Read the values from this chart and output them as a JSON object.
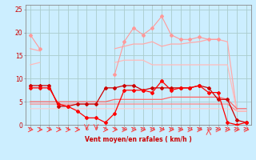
{
  "xlabel": "Vent moyen/en rafales ( km/h )",
  "ylabel": "",
  "x": [
    0,
    1,
    2,
    3,
    4,
    5,
    6,
    7,
    8,
    9,
    10,
    11,
    12,
    13,
    14,
    15,
    16,
    17,
    18,
    19,
    20,
    21,
    22,
    23
  ],
  "ylim": [
    0,
    26
  ],
  "xlim": [
    -0.5,
    23.5
  ],
  "yticks": [
    0,
    5,
    10,
    15,
    20,
    25
  ],
  "background_color": "#cceeff",
  "grid_color": "#aacccc",
  "lines": [
    {
      "y": [
        19.5,
        16.5,
        null,
        null,
        null,
        null,
        null,
        null,
        null,
        11.0,
        18.0,
        21.0,
        19.5,
        21.0,
        23.5,
        19.5,
        18.5,
        18.5,
        19.0,
        18.5,
        18.5,
        null,
        null,
        null
      ],
      "color": "#ff9999",
      "lw": 0.8,
      "marker": "D",
      "ms": 2.0,
      "zorder": 3
    },
    {
      "y": [
        16.5,
        16.0,
        null,
        null,
        null,
        null,
        null,
        null,
        null,
        16.5,
        17.0,
        17.5,
        17.5,
        18.0,
        17.0,
        17.5,
        17.5,
        17.8,
        18.0,
        18.5,
        18.5,
        18.0,
        3.0,
        3.0
      ],
      "color": "#ffaaaa",
      "lw": 0.9,
      "marker": null,
      "ms": 0,
      "zorder": 2
    },
    {
      "y": [
        13.0,
        13.5,
        null,
        null,
        null,
        null,
        null,
        null,
        null,
        13.5,
        14.0,
        14.0,
        14.0,
        13.0,
        13.0,
        13.0,
        13.0,
        13.0,
        13.0,
        13.0,
        13.0,
        13.0,
        3.0,
        3.0
      ],
      "color": "#ffbbbb",
      "lw": 0.9,
      "marker": null,
      "ms": 0,
      "zorder": 2
    },
    {
      "y": [
        8.5,
        8.5,
        8.5,
        4.0,
        4.0,
        4.5,
        4.5,
        4.5,
        8.0,
        8.0,
        8.5,
        8.5,
        7.5,
        8.0,
        8.0,
        8.0,
        8.0,
        8.0,
        8.5,
        8.0,
        5.5,
        5.5,
        1.0,
        0.5
      ],
      "color": "#cc0000",
      "lw": 0.9,
      "marker": "D",
      "ms": 2.0,
      "zorder": 4
    },
    {
      "y": [
        8.0,
        8.0,
        8.0,
        4.5,
        4.0,
        3.0,
        1.5,
        1.5,
        0.5,
        2.5,
        7.5,
        7.5,
        7.5,
        7.0,
        9.5,
        7.5,
        8.0,
        8.0,
        8.5,
        7.0,
        7.0,
        0.5,
        0.0,
        0.5
      ],
      "color": "#ff0000",
      "lw": 0.9,
      "marker": "D",
      "ms": 2.0,
      "zorder": 5
    },
    {
      "y": [
        5.0,
        5.0,
        5.0,
        5.0,
        5.0,
        5.0,
        5.0,
        5.0,
        5.0,
        5.5,
        5.5,
        5.5,
        5.5,
        5.5,
        5.5,
        6.0,
        6.0,
        6.0,
        6.0,
        6.0,
        6.0,
        5.5,
        3.5,
        3.5
      ],
      "color": "#ff6666",
      "lw": 0.9,
      "marker": null,
      "ms": 0,
      "zorder": 2
    },
    {
      "y": [
        4.5,
        4.5,
        4.5,
        4.5,
        4.5,
        4.5,
        4.5,
        4.5,
        4.5,
        4.5,
        4.5,
        4.5,
        4.5,
        4.5,
        4.5,
        4.5,
        4.5,
        4.5,
        4.5,
        4.5,
        4.5,
        4.5,
        3.0,
        3.0
      ],
      "color": "#ff8888",
      "lw": 0.9,
      "marker": null,
      "ms": 0,
      "zorder": 2
    },
    {
      "y": [
        3.5,
        3.5,
        3.5,
        3.5,
        3.5,
        3.5,
        3.5,
        3.5,
        3.5,
        3.5,
        3.5,
        3.5,
        3.5,
        3.5,
        3.5,
        3.5,
        3.5,
        3.5,
        3.5,
        3.5,
        3.5,
        3.5,
        3.0,
        3.0
      ],
      "color": "#ffcccc",
      "lw": 0.8,
      "marker": null,
      "ms": 0,
      "zorder": 2
    }
  ],
  "arrow_directions": [
    0,
    0,
    0,
    0,
    0,
    0,
    1,
    1,
    0,
    0,
    0,
    0,
    0,
    0,
    0,
    0,
    0,
    0,
    0,
    2,
    0,
    0,
    0,
    0
  ],
  "arrow_color": "#ff4444"
}
